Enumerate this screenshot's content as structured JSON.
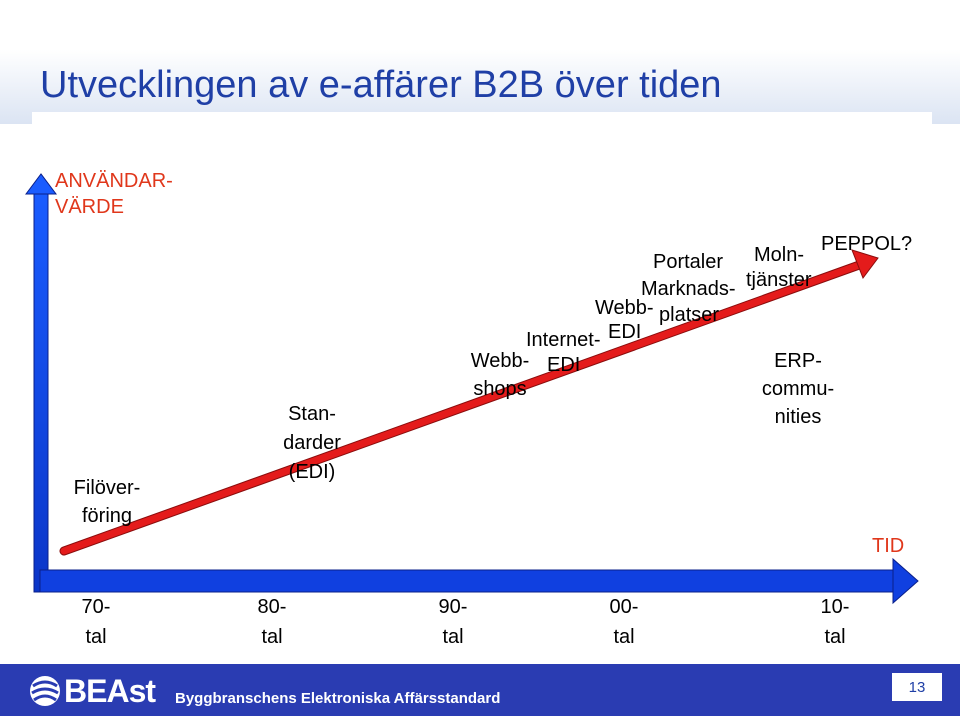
{
  "slide": {
    "title": "Utvecklingen av e-affärer B2B över tiden",
    "page_number": "13"
  },
  "axes": {
    "y_label_line1": "ANVÄNDAR-",
    "y_label_line2": "VÄRDE",
    "x_label": "TID"
  },
  "ticks": [
    {
      "line1": "70-",
      "line2": "tal"
    },
    {
      "line1": "80-",
      "line2": "tal"
    },
    {
      "line1": "90-",
      "line2": "tal"
    },
    {
      "line1": "00-",
      "line2": "tal"
    },
    {
      "line1": "10-",
      "line2": "tal"
    }
  ],
  "milestones": {
    "filoverforing": [
      "Filöver-",
      "föring"
    ],
    "standarder": [
      "Stan-",
      "darder",
      "(EDI)"
    ],
    "webbshops": [
      "Webb-",
      "shops"
    ],
    "internet_edi": [
      "Internet-",
      "EDI"
    ],
    "webb_edi": [
      "Webb-",
      "EDI"
    ],
    "marknadsplatser": [
      "Marknads-",
      "platser"
    ],
    "portaler": "Portaler",
    "molntjanster": [
      "Moln-",
      "tjänster"
    ],
    "peppol": "PEPPOL?",
    "erp": [
      "ERP-",
      "commu-",
      "nities"
    ]
  },
  "footer": {
    "logo": "BEAst",
    "organisation": "Byggbranschens Elektroniska Affärsstandard"
  },
  "colors": {
    "title": "#1f3fa6",
    "axis_blue": "#1040e0",
    "trend_red": "#e41b1b",
    "axis_label_red": "#e0371b",
    "footer_blue": "#2a3cb2"
  }
}
